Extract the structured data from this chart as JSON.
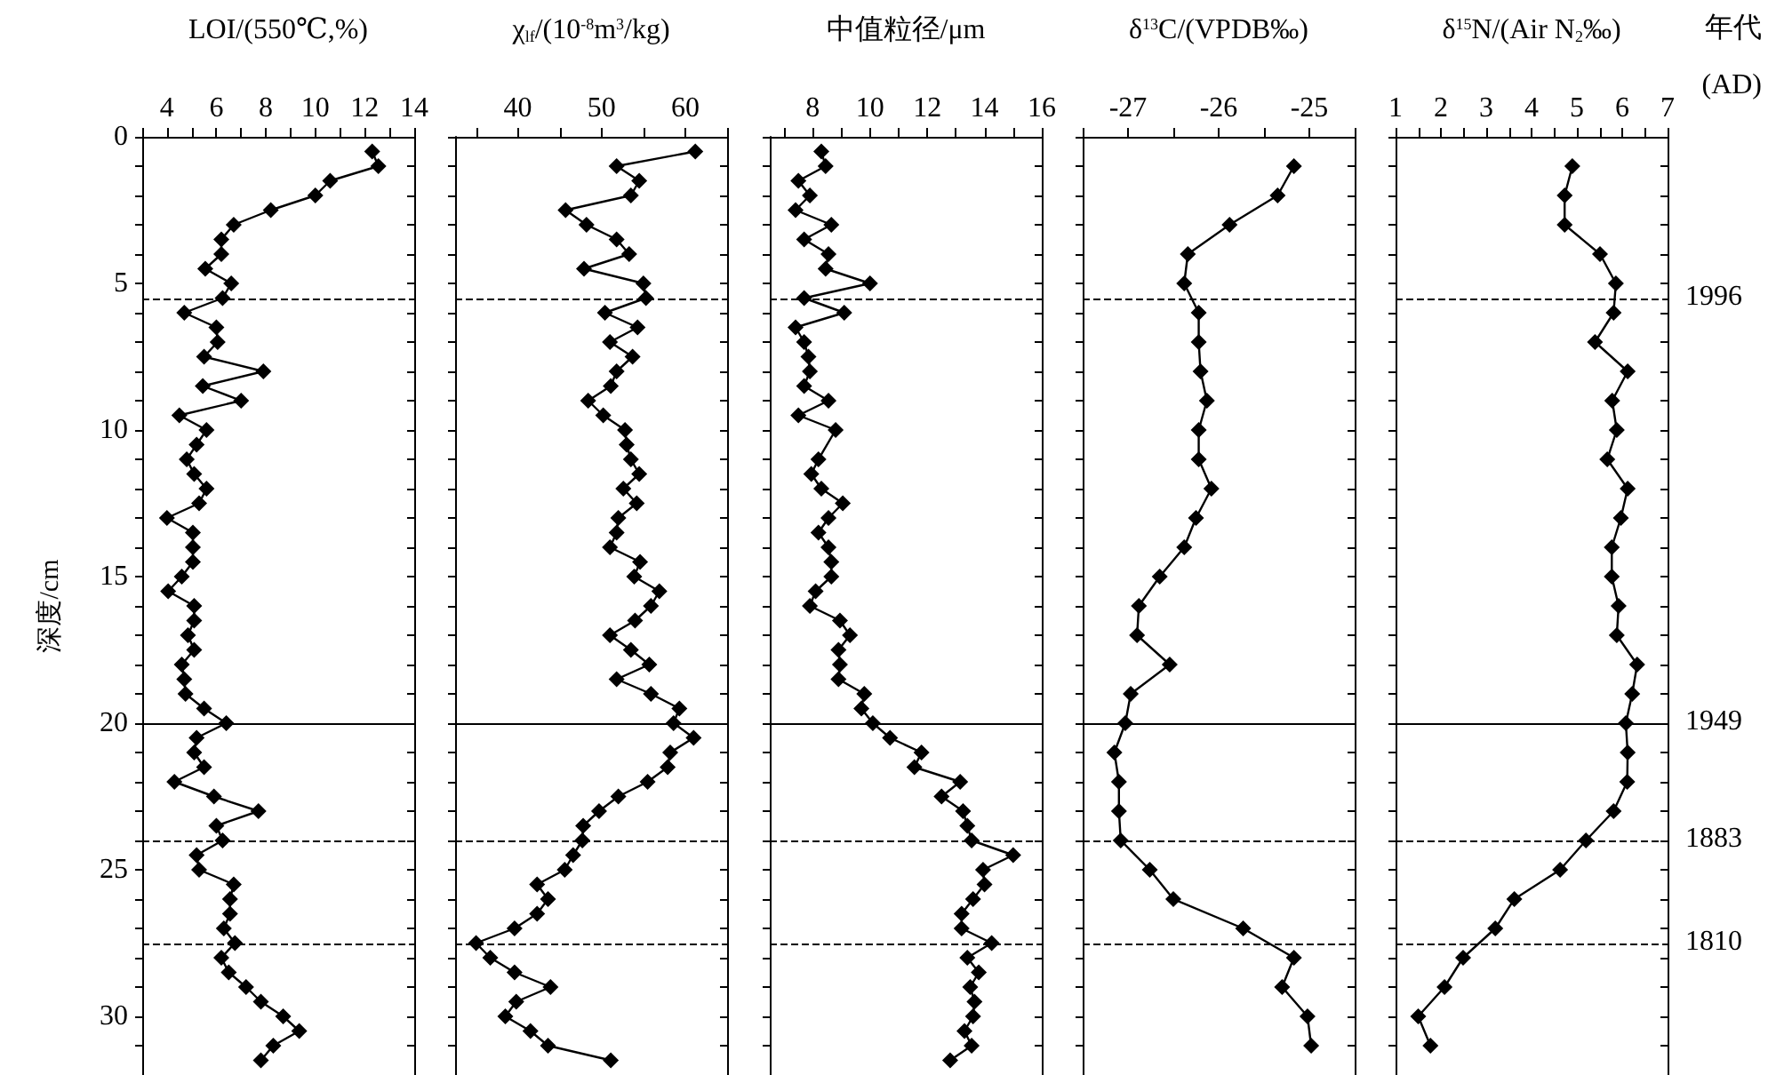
{
  "chart_data": [
    {
      "type": "line",
      "xlabel": "LOI/(550℃,%)",
      "ylabel": "深度/cm",
      "xlim": [
        3,
        14
      ],
      "xticks": [
        {
          "value": 3,
          "label": null
        },
        4,
        {
          "value": 5,
          "label": null
        },
        6,
        {
          "value": 7,
          "label": null
        },
        8,
        {
          "value": 9,
          "label": null
        },
        10,
        {
          "value": 11,
          "label": null
        },
        12,
        {
          "value": 13,
          "label": null
        },
        14
      ],
      "ylim": [
        32,
        0
      ],
      "yticks": [
        0,
        {
          "value": 1,
          "label": null
        },
        {
          "value": 2,
          "label": null
        },
        {
          "value": 3,
          "label": null
        },
        {
          "value": 4,
          "label": null
        },
        5,
        {
          "value": 6,
          "label": null
        },
        {
          "value": 7,
          "label": null
        },
        {
          "value": 8,
          "label": null
        },
        {
          "value": 9,
          "label": null
        },
        10,
        {
          "value": 11,
          "label": null
        },
        {
          "value": 12,
          "label": null
        },
        {
          "value": 13,
          "label": null
        },
        {
          "value": 14,
          "label": null
        },
        15,
        {
          "value": 16,
          "label": null
        },
        {
          "value": 17,
          "label": null
        },
        {
          "value": 18,
          "label": null
        },
        {
          "value": 19,
          "label": null
        },
        20,
        {
          "value": 21,
          "label": null
        },
        {
          "value": 22,
          "label": null
        },
        {
          "value": 23,
          "label": null
        },
        {
          "value": 24,
          "label": null
        },
        25,
        {
          "value": 26,
          "label": null
        },
        {
          "value": 27,
          "label": null
        },
        {
          "value": 28,
          "label": null
        },
        {
          "value": 29,
          "label": null
        },
        30,
        {
          "value": 31,
          "label": null
        },
        {
          "value": 32,
          "label": null
        }
      ],
      "grid": false,
      "marker": "diamond",
      "line_style": "solid",
      "series": [
        {
          "color": "#000000",
          "x": [
            12.3,
            12.55,
            10.6,
            10.0,
            8.2,
            6.7,
            6.2,
            6.2,
            5.55,
            6.6,
            6.25,
            4.7,
            6.0,
            6.05,
            5.5,
            7.9,
            5.45,
            7.0,
            4.5,
            5.6,
            5.2,
            4.8,
            5.1,
            5.6,
            5.3,
            4.0,
            5.05,
            5.05,
            5.05,
            4.6,
            4.05,
            5.1,
            5.1,
            4.85,
            5.1,
            4.6,
            4.7,
            4.75,
            5.5,
            6.4,
            5.2,
            5.1,
            5.5,
            4.3,
            5.9,
            7.7,
            6.0,
            6.25,
            5.2,
            5.3,
            6.7,
            6.55,
            6.55,
            6.3,
            6.75,
            6.2,
            6.5,
            7.2,
            7.8,
            8.7,
            9.35,
            8.3,
            7.8
          ],
          "values": [
            0.5,
            1,
            1.5,
            2,
            2.5,
            3,
            3.5,
            4,
            4.5,
            5,
            5.5,
            6,
            6.5,
            7,
            7.5,
            8,
            8.5,
            9,
            9.5,
            10,
            10.5,
            11,
            11.5,
            12,
            12.5,
            13,
            13.5,
            14,
            14.5,
            15,
            15.5,
            16,
            16.5,
            17,
            17.5,
            18,
            18.5,
            19,
            19.5,
            20,
            20.5,
            21,
            21.5,
            22,
            22.5,
            23,
            23.5,
            24,
            24.5,
            25,
            25.5,
            26,
            26.5,
            27,
            27.5,
            28,
            28.5,
            29,
            29.5,
            30,
            30.5,
            31,
            31.5
          ]
        }
      ],
      "ref_lines": [
        {
          "axis": "y",
          "value": 5.5,
          "line_style": "dashed"
        },
        {
          "axis": "y",
          "value": 20,
          "line_style": "solid"
        },
        {
          "axis": "y",
          "value": 24,
          "line_style": "dashed"
        },
        {
          "axis": "y",
          "value": 27.5,
          "line_style": "dashed"
        }
      ]
    },
    {
      "type": "line",
      "xlabel": "χ$_{lf}$/(10$^{-8}$m$^{3}$/kg)",
      "xlim": [
        32.5,
        65
      ],
      "xticks": [
        {
          "value": 35,
          "label": null
        },
        40,
        {
          "value": 45,
          "label": null
        },
        50,
        {
          "value": 55,
          "label": null
        },
        60,
        {
          "value": 65,
          "label": null
        }
      ],
      "ylim": [
        32,
        0
      ],
      "yticks": [
        0,
        1,
        2,
        3,
        4,
        5,
        6,
        7,
        8,
        9,
        10,
        11,
        12,
        13,
        14,
        15,
        16,
        17,
        18,
        19,
        20,
        21,
        22,
        23,
        24,
        25,
        26,
        27,
        28,
        29,
        30,
        31,
        32
      ],
      "tick_labels": "x",
      "grid": false,
      "marker": "diamond",
      "line_style": "solid",
      "series": [
        {
          "color": "#000000",
          "x": [
            61.2,
            51.8,
            54.5,
            53.5,
            45.7,
            48.2,
            51.8,
            53.3,
            47.9,
            55.0,
            55.3,
            50.4,
            54.3,
            51.0,
            53.7,
            51.8,
            51.1,
            48.4,
            50.2,
            52.8,
            53.0,
            53.5,
            54.5,
            52.6,
            54.2,
            52.0,
            51.8,
            51.0,
            54.6,
            53.9,
            56.9,
            55.9,
            54.0,
            51.0,
            53.5,
            55.7,
            51.8,
            55.9,
            59.3,
            58.6,
            61.0,
            58.2,
            57.9,
            55.5,
            52.0,
            49.7,
            47.8,
            47.7,
            46.6,
            45.6,
            42.3,
            43.6,
            42.3,
            39.6,
            35.0,
            36.7,
            39.6,
            43.9,
            39.8,
            38.5,
            41.5,
            43.6,
            51.1
          ],
          "values": [
            0.5,
            1,
            1.5,
            2,
            2.5,
            3,
            3.5,
            4,
            4.5,
            5,
            5.5,
            6,
            6.5,
            7,
            7.5,
            8,
            8.5,
            9,
            9.5,
            10,
            10.5,
            11,
            11.5,
            12,
            12.5,
            13,
            13.5,
            14,
            14.5,
            15,
            15.5,
            16,
            16.5,
            17,
            17.5,
            18,
            18.5,
            19,
            19.5,
            20,
            20.5,
            21,
            21.5,
            22,
            22.5,
            23,
            23.5,
            24,
            24.5,
            25,
            25.5,
            26,
            26.5,
            27,
            27.5,
            28,
            28.5,
            29,
            29.5,
            30,
            30.5,
            31,
            31.5
          ]
        }
      ],
      "ref_lines": [
        {
          "axis": "y",
          "value": 5.5,
          "line_style": "dashed"
        },
        {
          "axis": "y",
          "value": 20,
          "line_style": "solid"
        },
        {
          "axis": "y",
          "value": 24,
          "line_style": "dashed"
        },
        {
          "axis": "y",
          "value": 27.5,
          "line_style": "dashed"
        }
      ]
    },
    {
      "type": "line",
      "xlabel": "中值粒径/μm",
      "xlim": [
        6.5,
        16
      ],
      "xticks": [
        {
          "value": 7,
          "label": null
        },
        8,
        {
          "value": 9,
          "label": null
        },
        10,
        {
          "value": 11,
          "label": null
        },
        12,
        {
          "value": 13,
          "label": null
        },
        14,
        {
          "value": 15,
          "label": null
        },
        16
      ],
      "ylim": [
        32,
        0
      ],
      "yticks": [
        0,
        1,
        2,
        3,
        4,
        5,
        6,
        7,
        8,
        9,
        10,
        11,
        12,
        13,
        14,
        15,
        16,
        17,
        18,
        19,
        20,
        21,
        22,
        23,
        24,
        25,
        26,
        27,
        28,
        29,
        30,
        31,
        32
      ],
      "tick_labels": "x",
      "grid": false,
      "marker": "diamond",
      "line_style": "solid",
      "series": [
        {
          "color": "#000000",
          "x": [
            8.3,
            8.45,
            7.5,
            7.9,
            7.4,
            8.65,
            7.7,
            8.55,
            8.45,
            10.0,
            7.7,
            9.1,
            7.4,
            7.7,
            7.85,
            7.9,
            7.7,
            8.55,
            7.5,
            8.8,
            8.2,
            7.95,
            8.3,
            9.05,
            8.55,
            8.2,
            8.55,
            8.65,
            8.65,
            8.1,
            7.9,
            8.95,
            9.3,
            8.9,
            8.95,
            8.9,
            9.8,
            9.7,
            10.1,
            10.7,
            11.8,
            11.55,
            13.15,
            12.5,
            13.25,
            13.4,
            13.55,
            15.0,
            13.95,
            14.0,
            13.6,
            13.2,
            13.2,
            14.25,
            13.4,
            13.8,
            13.5,
            13.65,
            13.6,
            13.3,
            13.55,
            12.8
          ],
          "values": [
            0.5,
            1,
            1.5,
            2,
            2.5,
            3,
            3.5,
            4,
            4.5,
            5,
            5.5,
            6,
            6.5,
            7,
            7.5,
            8,
            8.5,
            9,
            9.5,
            10,
            11,
            11.5,
            12,
            12.5,
            13,
            13.5,
            14,
            14.5,
            15,
            15.5,
            16,
            16.5,
            17,
            17.5,
            18,
            18.5,
            19,
            19.5,
            20,
            20.5,
            21,
            21.5,
            22,
            22.5,
            23,
            23.5,
            24,
            24.5,
            25,
            25.5,
            26,
            26.5,
            27,
            27.5,
            28,
            28.5,
            29,
            29.5,
            30,
            30.5,
            31,
            31.5
          ]
        }
      ],
      "ref_lines": [
        {
          "axis": "y",
          "value": 5.5,
          "line_style": "dashed"
        },
        {
          "axis": "y",
          "value": 20,
          "line_style": "solid"
        },
        {
          "axis": "y",
          "value": 24,
          "line_style": "dashed"
        },
        {
          "axis": "y",
          "value": 27.5,
          "line_style": "dashed"
        }
      ]
    },
    {
      "type": "line",
      "xlabel": "δ$^{13}$C/(VPDB‰)",
      "xlim": [
        -27.5,
        -24.5
      ],
      "xticks": [
        {
          "value": -27.5,
          "label": null
        },
        -27,
        {
          "value": -26.5,
          "label": null
        },
        -26,
        {
          "value": -25.5,
          "label": null
        },
        -25,
        {
          "value": -24.5,
          "label": null
        }
      ],
      "ylim": [
        32,
        0
      ],
      "yticks": [
        0,
        1,
        2,
        3,
        4,
        5,
        6,
        7,
        8,
        9,
        10,
        11,
        12,
        13,
        14,
        15,
        16,
        17,
        18,
        19,
        20,
        21,
        22,
        23,
        24,
        25,
        26,
        27,
        28,
        29,
        30,
        31,
        32
      ],
      "tick_labels": "x",
      "grid": false,
      "marker": "diamond",
      "line_style": "solid",
      "series": [
        {
          "color": "#000000",
          "x": [
            -25.17,
            -25.35,
            -25.88,
            -26.34,
            -26.38,
            -26.22,
            -26.22,
            -26.2,
            -26.13,
            -26.22,
            -26.22,
            -26.08,
            -26.25,
            -26.38,
            -26.65,
            -26.88,
            -26.9,
            -26.54,
            -26.97,
            -27.03,
            -27.15,
            -27.1,
            -27.1,
            -27.08,
            -26.76,
            -26.5,
            -25.73,
            -25.17,
            -25.3,
            -25.02,
            -24.98
          ],
          "values": [
            1,
            2,
            3,
            4,
            5,
            6,
            7,
            8,
            9,
            10,
            11,
            12,
            13,
            14,
            15,
            16,
            17,
            18,
            19,
            20,
            21,
            22,
            23,
            24,
            25,
            26,
            27,
            28,
            29,
            30,
            31
          ]
        }
      ],
      "ref_lines": [
        {
          "axis": "y",
          "value": 5.5,
          "line_style": "dashed"
        },
        {
          "axis": "y",
          "value": 20,
          "line_style": "solid"
        },
        {
          "axis": "y",
          "value": 24,
          "line_style": "dashed"
        },
        {
          "axis": "y",
          "value": 27.5,
          "line_style": "dashed"
        }
      ]
    },
    {
      "type": "line",
      "xlabel": "δ$^{15}$N/(Air N$_{2}$‰)",
      "xlim": [
        1,
        7
      ],
      "xticks": [
        1,
        {
          "value": 1.5,
          "label": null
        },
        2,
        {
          "value": 2.5,
          "label": null
        },
        3,
        {
          "value": 3.5,
          "label": null
        },
        4,
        {
          "value": 4.5,
          "label": null
        },
        5,
        {
          "value": 5.5,
          "label": null
        },
        6,
        {
          "value": 6.5,
          "label": null
        },
        7
      ],
      "ylim": [
        32,
        0
      ],
      "yticks": [
        0,
        1,
        2,
        3,
        4,
        5,
        6,
        7,
        8,
        9,
        10,
        11,
        12,
        13,
        14,
        15,
        16,
        17,
        18,
        19,
        20,
        21,
        22,
        23,
        24,
        25,
        26,
        27,
        28,
        29,
        30,
        31,
        32
      ],
      "tick_labels": "x",
      "grid": false,
      "marker": "diamond",
      "line_style": "solid",
      "series": [
        {
          "color": "#000000",
          "x": [
            4.9,
            4.73,
            4.73,
            5.51,
            5.86,
            5.81,
            5.4,
            6.12,
            5.78,
            5.88,
            5.67,
            6.12,
            5.97,
            5.77,
            5.77,
            5.92,
            5.88,
            6.33,
            6.22,
            6.08,
            6.12,
            6.11,
            5.81,
            5.2,
            4.63,
            3.62,
            3.2,
            2.49,
            2.08,
            1.5,
            1.77
          ],
          "values": [
            1,
            2,
            3,
            4,
            5,
            6,
            7,
            8,
            9,
            10,
            11,
            12,
            13,
            14,
            15,
            16,
            17,
            18,
            19,
            20,
            21,
            22,
            23,
            24,
            25,
            26,
            27,
            28,
            29,
            30,
            31
          ]
        }
      ],
      "ref_lines": [
        {
          "axis": "y",
          "value": 5.5,
          "line_style": "dashed"
        },
        {
          "axis": "y",
          "value": 20,
          "line_style": "solid"
        },
        {
          "axis": "y",
          "value": 24,
          "line_style": "dashed"
        },
        {
          "axis": "y",
          "value": 27.5,
          "line_style": "dashed"
        }
      ],
      "annotations": [
        "年代",
        "(AD)",
        "1996",
        "1949",
        "1883",
        "1810"
      ]
    }
  ]
}
